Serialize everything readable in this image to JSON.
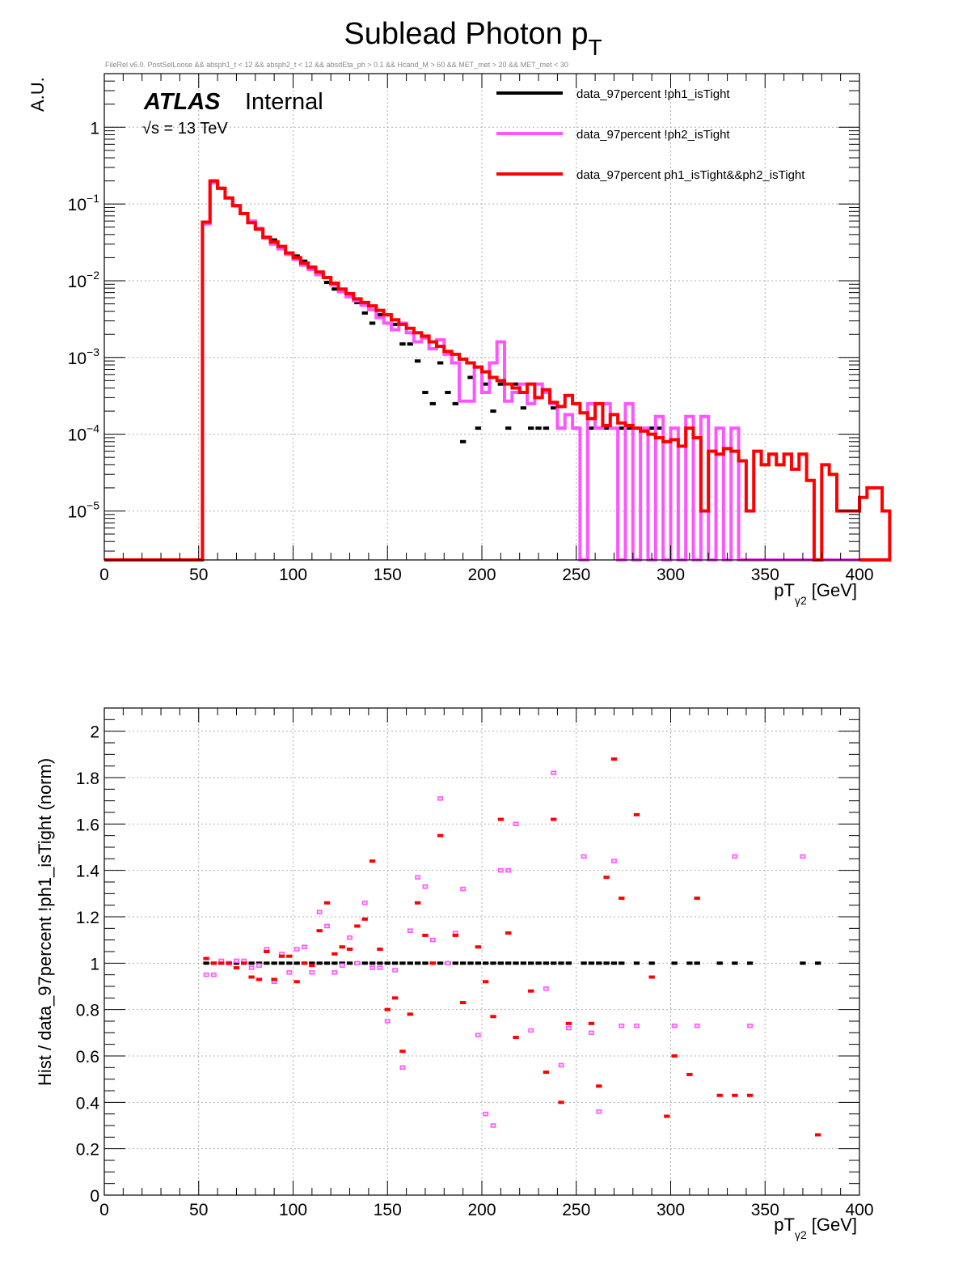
{
  "title": "Sublead Photon p",
  "title_sub": "T",
  "selection_text": "FileRel v6.0. PostSelLoose &&  absph1_t < 12 && absph2_t < 12 && absdEta_ph > 0.1 && Hcand_M > 60 && MET_met > 20 && MET_met < 30",
  "atlas_label": "ATLAS",
  "atlas_status": "Internal",
  "energy_label": "√s = 13 TeV",
  "colors": {
    "black": "#000000",
    "magenta": "#ff55ff",
    "red": "#ff0000"
  },
  "chart_data": [
    {
      "type": "line",
      "log_y": true,
      "ylabel": "A.U.",
      "xlabel": "pT",
      "xlabel_sub": "γ2",
      "xlabel_unit": "[GeV]",
      "xlim": [
        0,
        400
      ],
      "ylim": [
        2.3e-06,
        5
      ],
      "xticks": [
        "0",
        "50",
        "100",
        "150",
        "200",
        "250",
        "300",
        "350",
        "400"
      ],
      "yticks": [
        {
          "base": "1",
          "exp": ""
        },
        {
          "base": "10",
          "exp": "−1"
        },
        {
          "base": "10",
          "exp": "−2"
        },
        {
          "base": "10",
          "exp": "−3"
        },
        {
          "base": "10",
          "exp": "−4"
        },
        {
          "base": "10",
          "exp": "−5"
        }
      ],
      "grid": true,
      "legend_position": "top-right",
      "bin_width": 4,
      "bin_start": 52,
      "series": [
        {
          "name": "data_97percent  !ph1_isTight",
          "color": "#000000",
          "style": "markers",
          "values": [
            0.058,
            0.2,
            0.16,
            0.12,
            0.095,
            0.075,
            0.058,
            0.048,
            0.036,
            0.034,
            0.028,
            0.022,
            0.021,
            0.018,
            0.015,
            0.012,
            0.0095,
            0.0078,
            0.0072,
            0.0062,
            0.0052,
            0.0038,
            0.0028,
            0.0036,
            0.0036,
            0.0027,
            0.0015,
            0.0015,
            0.0009,
            0.00035,
            0.00025,
            0.00085,
            0.00035,
            0.00025,
            8e-05,
            0.00055,
            0.00012,
            0.00045,
            0.0002,
            0.00045,
            0.00012,
            0.00045,
            0.00022,
            0.00012,
            0.00012,
            0.00012,
            0.00022,
            0.00012,
            0.0,
            0.00012,
            0.0,
            0.00012,
            0.00012,
            0.00012,
            0.0,
            0.00012,
            0.00012,
            0.00012,
            0.0,
            0.00012,
            0.00012
          ]
        },
        {
          "name": "data_97percent  !ph2_isTight",
          "color": "#ff55ff",
          "style": "step",
          "values": [
            0.055,
            0.19,
            0.16,
            0.12,
            0.095,
            0.075,
            0.06,
            0.048,
            0.036,
            0.03,
            0.026,
            0.022,
            0.019,
            0.016,
            0.014,
            0.012,
            0.011,
            0.0088,
            0.0072,
            0.0062,
            0.0055,
            0.0048,
            0.0042,
            0.0033,
            0.0028,
            0.0023,
            0.0028,
            0.0021,
            0.0016,
            0.0018,
            0.0013,
            0.0017,
            0.0011,
            0.00085,
            0.00027,
            0.00027,
            0.00075,
            0.00035,
            0.00085,
            0.0016,
            0.00027,
            0.00035,
            0.00045,
            0.00025,
            0.00045,
            0.00035,
            0.00025,
            0.00012,
            0.00018,
            0.00012,
            0.0,
            0.00025,
            0.00012,
            0.00025,
            0.00012,
            0.0,
            0.00025,
            0.0,
            0.00012,
            0.0,
            0.00017,
            0.0,
            0.00012,
            0.0,
            0.00017,
            0.0,
            0.00017,
            0.0,
            0.00012,
            0.0,
            0.00012,
            0.0,
            0.0,
            0.0,
            0.0,
            0.0
          ]
        },
        {
          "name": "data_97percent  ph1_isTight&&ph2_isTight",
          "color": "#ff0000",
          "style": "step",
          "values": [
            0.058,
            0.2,
            0.16,
            0.12,
            0.095,
            0.075,
            0.057,
            0.047,
            0.037,
            0.032,
            0.028,
            0.023,
            0.02,
            0.017,
            0.015,
            0.013,
            0.011,
            0.0093,
            0.0078,
            0.0068,
            0.0058,
            0.0052,
            0.0047,
            0.0041,
            0.0036,
            0.0031,
            0.0027,
            0.0024,
            0.0021,
            0.0019,
            0.0016,
            0.0014,
            0.0012,
            0.0011,
            0.00095,
            0.00085,
            0.00075,
            0.00065,
            0.00055,
            0.0005,
            0.00045,
            0.0004,
            0.00035,
            0.00045,
            0.0003,
            0.00038,
            0.00026,
            0.00023,
            0.00032,
            0.00025,
            0.00019,
            0.00016,
            0.00025,
            0.00013,
            0.00018,
            0.00014,
            0.00013,
            0.00012,
            0.00011,
            0.0001,
            9e-05,
            8e-05,
            8.5e-05,
            7e-05,
            0.00012,
            9e-05,
            1e-05,
            6e-05,
            5.5e-05,
            6.5e-05,
            6e-05,
            4.5e-05,
            1e-05,
            6e-05,
            4e-05,
            5.5e-05,
            4e-05,
            5.5e-05,
            3.5e-05,
            5.5e-05,
            2.5e-05,
            0.0,
            4e-05,
            3e-05,
            1e-05,
            1e-05,
            1e-05,
            1.5e-05,
            2e-05,
            2e-05,
            1e-05
          ]
        }
      ]
    },
    {
      "type": "scatter",
      "ylabel": "Hist / data_97percent  !ph1_isTight (norm)",
      "xlabel": "pT",
      "xlabel_sub": "γ2",
      "xlabel_unit": "[GeV]",
      "xlim": [
        0,
        400
      ],
      "ylim": [
        0,
        2.1
      ],
      "xticks": [
        "0",
        "50",
        "100",
        "150",
        "200",
        "250",
        "300",
        "350",
        "400"
      ],
      "yticks": [
        "0",
        "0.2",
        "0.4",
        "0.6",
        "0.8",
        "1",
        "1.2",
        "1.4",
        "1.6",
        "1.8",
        "2"
      ],
      "grid": true,
      "bin_width": 4,
      "series": [
        {
          "name": "data_97percent  !ph1_isTight",
          "color": "#000000",
          "x": [
            54,
            58,
            62,
            66,
            70,
            74,
            78,
            82,
            86,
            90,
            94,
            98,
            102,
            106,
            110,
            114,
            118,
            122,
            126,
            130,
            134,
            138,
            142,
            146,
            150,
            154,
            158,
            162,
            166,
            170,
            174,
            178,
            182,
            186,
            190,
            194,
            198,
            202,
            206,
            210,
            214,
            218,
            222,
            226,
            230,
            234,
            238,
            242,
            246,
            254,
            258,
            262,
            266,
            270,
            274,
            282,
            290,
            302,
            310,
            314,
            326,
            334,
            342,
            370,
            378
          ],
          "y": [
            1,
            1,
            1,
            1,
            1,
            1,
            1,
            1,
            1,
            1,
            1,
            1,
            1,
            1,
            1,
            1,
            1,
            1,
            1,
            1,
            1,
            1,
            1,
            1,
            1,
            1,
            1,
            1,
            1,
            1,
            1,
            1,
            1,
            1,
            1,
            1,
            1,
            1,
            1,
            1,
            1,
            1,
            1,
            1,
            1,
            1,
            1,
            1,
            1,
            1,
            1,
            1,
            1,
            1,
            1,
            1,
            1,
            1,
            1,
            1,
            1,
            1,
            1,
            1,
            1
          ]
        },
        {
          "name": "data_97percent  !ph2_isTight",
          "color": "#ff55ff",
          "x": [
            54,
            58,
            62,
            66,
            70,
            74,
            78,
            82,
            86,
            90,
            94,
            98,
            102,
            106,
            110,
            114,
            118,
            122,
            126,
            130,
            134,
            138,
            142,
            146,
            150,
            154,
            158,
            162,
            166,
            170,
            174,
            178,
            182,
            186,
            190,
            198,
            202,
            206,
            210,
            214,
            218,
            226,
            234,
            238,
            242,
            246,
            254,
            258,
            262,
            270,
            274,
            282,
            302,
            314,
            334,
            342,
            370
          ],
          "y": [
            0.95,
            0.95,
            1.01,
            1.0,
            1.01,
            1.01,
            0.98,
            0.99,
            1.06,
            0.92,
            1.04,
            0.96,
            1.06,
            1.07,
            0.96,
            1.22,
            1.16,
            0.96,
            0.99,
            1.11,
            1.0,
            1.26,
            0.98,
            0.98,
            0.75,
            0.97,
            0.55,
            1.14,
            1.37,
            1.33,
            1.1,
            1.71,
            1.0,
            1.13,
            1.32,
            0.69,
            0.35,
            0.3,
            1.4,
            1.4,
            1.6,
            0.71,
            0.89,
            1.82,
            0.56,
            0.72,
            1.46,
            0.7,
            0.36,
            1.44,
            0.73,
            0.73,
            0.73,
            0.73,
            1.46,
            0.73,
            1.46
          ]
        },
        {
          "name": "data_97percent  ph1_isTight&&ph2_isTight",
          "color": "#ff0000",
          "x": [
            54,
            58,
            62,
            66,
            70,
            74,
            78,
            82,
            86,
            90,
            94,
            98,
            102,
            106,
            110,
            114,
            118,
            122,
            126,
            130,
            134,
            138,
            142,
            146,
            150,
            154,
            158,
            162,
            166,
            170,
            174,
            178,
            186,
            190,
            198,
            202,
            206,
            210,
            214,
            218,
            226,
            234,
            238,
            242,
            246,
            258,
            262,
            266,
            270,
            274,
            282,
            290,
            298,
            302,
            310,
            314,
            326,
            334,
            342,
            378
          ],
          "y": [
            1.02,
            1.0,
            1.0,
            1.0,
            0.98,
            1.0,
            0.94,
            0.93,
            1.05,
            0.93,
            1.03,
            1.03,
            0.92,
            1.0,
            0.99,
            1.14,
            1.26,
            1.04,
            1.07,
            1.06,
            1.16,
            1.19,
            1.44,
            1.06,
            0.8,
            0.85,
            0.62,
            0.78,
            1.26,
            1.12,
            1.0,
            1.55,
            1.12,
            0.83,
            1.07,
            0.92,
            0.77,
            1.62,
            1.13,
            0.68,
            0.88,
            0.53,
            1.62,
            0.4,
            0.74,
            0.74,
            0.47,
            1.37,
            1.88,
            1.28,
            1.64,
            0.94,
            0.34,
            0.6,
            0.52,
            1.28,
            0.43,
            0.43,
            0.43,
            0.26
          ]
        }
      ]
    }
  ]
}
